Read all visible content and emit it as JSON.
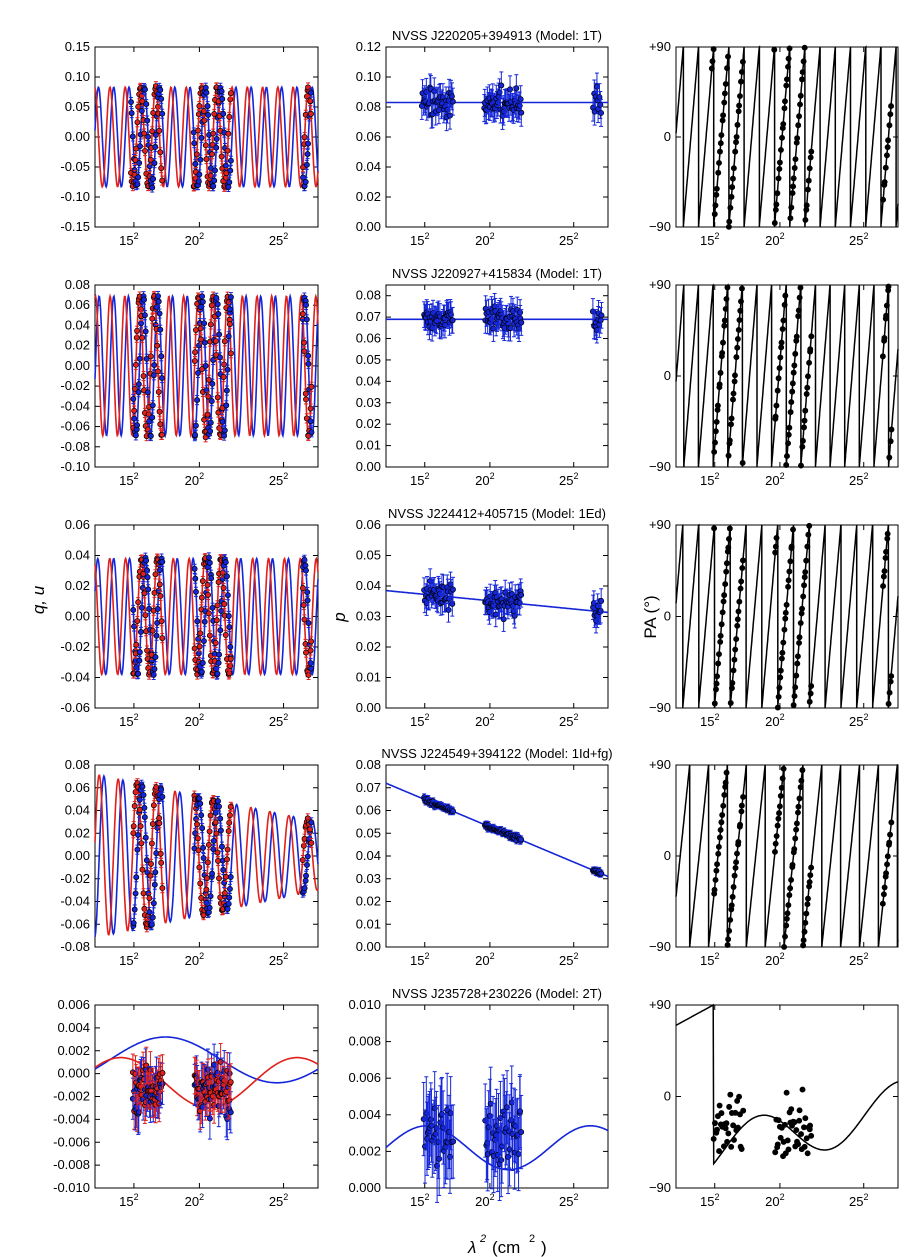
{
  "figure": {
    "xlabel_html_base": "λ",
    "xlabel_sup": "2",
    "xlabel_units": "(cm",
    "xlabel_units_sup": "2",
    "xlabel_units_close": ")",
    "ylabel_qu": "q, u",
    "ylabel_p": "p",
    "ylabel_pa": "PA (°)",
    "colors": {
      "q": "#e0201b",
      "u": "#1426d8",
      "p": "#1426d8",
      "pa": "#000000"
    }
  },
  "chart_data": [
    {
      "type": "line",
      "row": 0,
      "title": "NVSS J220205+394913 (Model: 1T)",
      "x_ticks": [
        "15",
        "20",
        "25"
      ],
      "x_tick_sup": "2",
      "x_range_lambda2": [
        121,
        717
      ],
      "data_ranges_lambda2": [
        [
          216,
          302
        ],
        [
          383,
          486
        ],
        [
          676,
          700
        ]
      ],
      "panels": {
        "qu": {
          "ylim": [
            -0.15,
            0.15
          ],
          "yticks": [
            "0.15",
            "0.10",
            "0.05",
            "0.00",
            "-0.05",
            "-0.10",
            "-0.15"
          ],
          "amplitude": 0.083,
          "rm_rad_m2": 770,
          "chi0_deg": 10
        },
        "p": {
          "ylim": [
            0,
            0.12
          ],
          "yticks": [
            "0.12",
            "0.10",
            "0.08",
            "0.06",
            "0.04",
            "0.02",
            "0.00"
          ],
          "p0": 0.083,
          "scatter": 0.007,
          "err": 0.009
        },
        "pa": {
          "yticks": [
            "+90",
            "0",
            "−90"
          ]
        }
      }
    },
    {
      "type": "line",
      "row": 1,
      "title": "NVSS J220927+415834 (Model: 1T)",
      "x_ticks": [
        "15",
        "20",
        "25"
      ],
      "x_tick_sup": "2",
      "x_range_lambda2": [
        121,
        717
      ],
      "data_ranges_lambda2": [
        [
          222,
          302
        ],
        [
          386,
          486
        ],
        [
          676,
          700
        ]
      ],
      "panels": {
        "qu": {
          "ylim": [
            -0.1,
            0.08
          ],
          "yticks": [
            "0.08",
            "0.06",
            "0.04",
            "0.02",
            "0.00",
            "-0.02",
            "-0.04",
            "-0.06",
            "-0.08",
            "-0.10"
          ],
          "amplitude": 0.069,
          "rm_rad_m2": 800,
          "chi0_deg": -20
        },
        "p": {
          "ylim": [
            0,
            0.085
          ],
          "yticks": [
            "0.08",
            "0.07",
            "0.06",
            "0.05",
            "0.04",
            "0.03",
            "0.02",
            "0.01",
            "0.00"
          ],
          "p0": 0.069,
          "scatter": 0.004,
          "err": 0.006
        },
        "pa": {
          "yticks": [
            "+90",
            "0",
            "−90"
          ]
        }
      }
    },
    {
      "type": "line",
      "row": 2,
      "title": "NVSS J224412+405715 (Model: 1Ed)",
      "x_ticks": [
        "15",
        "20",
        "25"
      ],
      "x_tick_sup": "2",
      "x_range_lambda2": [
        121,
        717
      ],
      "data_ranges_lambda2": [
        [
          222,
          302
        ],
        [
          386,
          486
        ],
        [
          676,
          700
        ]
      ],
      "panels": {
        "qu": {
          "ylim": [
            -0.06,
            0.06
          ],
          "yticks": [
            "0.06",
            "0.04",
            "0.02",
            "0.00",
            "-0.02",
            "-0.04",
            "-0.06"
          ],
          "amplitude": 0.038,
          "rm_rad_m2": 740,
          "chi0_deg": 40
        },
        "p": {
          "ylim": [
            0,
            0.06
          ],
          "yticks": [
            "0.06",
            "0.05",
            "0.04",
            "0.03",
            "0.02",
            "0.01",
            "0.00"
          ],
          "p0": 0.0385,
          "p_slope": -1.2e-05,
          "scatter": 0.003,
          "err": 0.004
        },
        "pa": {
          "yticks": [
            "+90",
            "0",
            "−90"
          ]
        }
      }
    },
    {
      "type": "line",
      "row": 3,
      "title": "NVSS J224549+394122 (Model: 1Id+fg)",
      "x_ticks": [
        "15",
        "20",
        "25"
      ],
      "x_tick_sup": "2",
      "x_range_lambda2": [
        121,
        717
      ],
      "data_ranges_lambda2": [
        [
          222,
          302
        ],
        [
          386,
          486
        ],
        [
          676,
          700
        ]
      ],
      "panels": {
        "qu": {
          "ylim": [
            -0.08,
            0.08
          ],
          "yticks": [
            "0.08",
            "0.06",
            "0.04",
            "0.02",
            "0.00",
            "-0.02",
            "-0.04",
            "-0.06",
            "-0.08"
          ],
          "amplitude_start": 0.072,
          "amplitude_end": 0.03,
          "rm_rad_m2": 620,
          "chi0_deg": 70
        },
        "p": {
          "ylim": [
            0,
            0.08
          ],
          "yticks": [
            "0.08",
            "0.07",
            "0.06",
            "0.05",
            "0.04",
            "0.03",
            "0.02",
            "0.01",
            "0.00"
          ],
          "p_start": 0.072,
          "p_end": 0.031,
          "scatter": 0.0008,
          "err": 0.0015
        },
        "pa": {
          "yticks": [
            "+90",
            "0",
            "−90"
          ]
        }
      }
    },
    {
      "type": "line",
      "row": 4,
      "title": "NVSS J235728+230226 (Model: 2T)",
      "x_ticks": [
        "15",
        "20",
        "25"
      ],
      "x_tick_sup": "2",
      "x_range_lambda2": [
        121,
        717
      ],
      "data_ranges_lambda2": [
        [
          222,
          302
        ],
        [
          386,
          486
        ]
      ],
      "panels": {
        "qu": {
          "ylim": [
            -0.01,
            0.006
          ],
          "yticks": [
            "0.006",
            "0.004",
            "0.002",
            "0.000",
            "-0.002",
            "-0.004",
            "-0.006",
            "-0.008",
            "-0.010"
          ]
        },
        "p": {
          "ylim": [
            0,
            0.01
          ],
          "yticks": [
            "0.010",
            "0.008",
            "0.006",
            "0.004",
            "0.002",
            "0.000"
          ]
        },
        "pa": {
          "yticks": [
            "+90",
            "0",
            "−90"
          ]
        }
      }
    }
  ]
}
